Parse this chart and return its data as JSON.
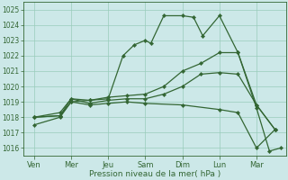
{
  "bg_color": "#cce8e8",
  "grid_color": "#99ccbb",
  "line_color": "#336633",
  "marker_color": "#336633",
  "xlabel": "Pression niveau de la mer( hPa )",
  "xtick_labels": [
    "Ven",
    "Mer",
    "Jeu",
    "Sam",
    "Dim",
    "Lun",
    "Mar"
  ],
  "ylim": [
    1015.5,
    1025.5
  ],
  "ytick_vals": [
    1016,
    1017,
    1018,
    1019,
    1020,
    1021,
    1022,
    1023,
    1024,
    1025
  ],
  "lines": [
    {
      "x": [
        0.0,
        0.7,
        1.0,
        1.5,
        2.0,
        2.4,
        2.7,
        3.0,
        3.15,
        3.5,
        4.0,
        4.3,
        4.55,
        5.0,
        5.5,
        6.0,
        6.35,
        6.65
      ],
      "y": [
        1017.5,
        1018.0,
        1019.0,
        1019.1,
        1019.2,
        1022.0,
        1022.7,
        1023.0,
        1022.8,
        1024.6,
        1024.6,
        1024.5,
        1023.3,
        1024.6,
        1022.2,
        1018.6,
        1015.8,
        1016.0
      ]
    },
    {
      "x": [
        0.0,
        0.7,
        1.0,
        1.5,
        2.0,
        2.5,
        3.0,
        3.5,
        4.0,
        4.5,
        5.0,
        5.5,
        6.0,
        6.5
      ],
      "y": [
        1018.0,
        1018.3,
        1019.2,
        1019.1,
        1019.3,
        1019.4,
        1019.5,
        1020.0,
        1021.0,
        1021.5,
        1022.2,
        1022.2,
        1018.8,
        1017.2
      ]
    },
    {
      "x": [
        0.0,
        0.7,
        1.0,
        1.5,
        2.0,
        2.5,
        3.0,
        3.5,
        4.0,
        4.5,
        5.0,
        5.5,
        6.0,
        6.5
      ],
      "y": [
        1018.0,
        1018.1,
        1019.2,
        1018.9,
        1019.1,
        1019.2,
        1019.2,
        1019.5,
        1020.0,
        1020.8,
        1020.9,
        1020.8,
        1018.8,
        1017.2
      ]
    },
    {
      "x": [
        0.0,
        0.7,
        1.0,
        1.5,
        2.0,
        2.5,
        3.0,
        4.0,
        5.0,
        5.5,
        6.0,
        6.5
      ],
      "y": [
        1018.0,
        1018.1,
        1019.0,
        1018.8,
        1018.9,
        1019.0,
        1018.9,
        1018.8,
        1018.5,
        1018.3,
        1016.0,
        1017.2
      ]
    }
  ]
}
